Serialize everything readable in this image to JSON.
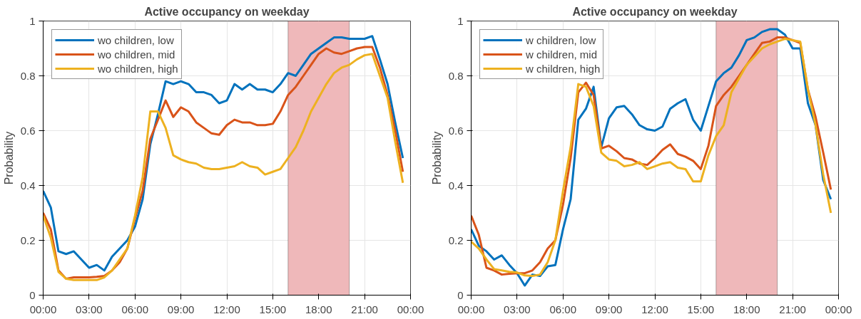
{
  "chart_data": [
    {
      "type": "line",
      "title": "Active occupancy on weekday",
      "ylabel": "Probability",
      "x": [
        0,
        0.5,
        1,
        1.5,
        2,
        2.5,
        3,
        3.5,
        4,
        4.5,
        5,
        5.5,
        6,
        6.5,
        7,
        7.5,
        8,
        8.5,
        9,
        9.5,
        10,
        10.5,
        11,
        11.5,
        12,
        12.5,
        13,
        13.5,
        14,
        14.5,
        15,
        15.5,
        16,
        16.5,
        17,
        17.5,
        18,
        18.5,
        19,
        19.5,
        20,
        20.5,
        21,
        21.5,
        22,
        22.5,
        23,
        23.5
      ],
      "series": [
        {
          "name": "wo children, low",
          "color": "#0072bd",
          "values": [
            0.38,
            0.32,
            0.16,
            0.15,
            0.16,
            0.13,
            0.1,
            0.11,
            0.09,
            0.14,
            0.17,
            0.2,
            0.25,
            0.35,
            0.55,
            0.66,
            0.78,
            0.77,
            0.78,
            0.77,
            0.74,
            0.74,
            0.73,
            0.7,
            0.71,
            0.77,
            0.75,
            0.77,
            0.75,
            0.75,
            0.74,
            0.77,
            0.81,
            0.8,
            0.84,
            0.88,
            0.9,
            0.92,
            0.94,
            0.94,
            0.935,
            0.935,
            0.935,
            0.945,
            0.86,
            0.77,
            0.63,
            0.5
          ]
        },
        {
          "name": "wo children, mid",
          "color": "#d95319",
          "values": [
            0.3,
            0.24,
            0.09,
            0.06,
            0.065,
            0.065,
            0.065,
            0.067,
            0.07,
            0.09,
            0.12,
            0.17,
            0.28,
            0.38,
            0.57,
            0.64,
            0.71,
            0.65,
            0.685,
            0.67,
            0.63,
            0.61,
            0.59,
            0.585,
            0.62,
            0.64,
            0.63,
            0.63,
            0.62,
            0.62,
            0.625,
            0.67,
            0.73,
            0.76,
            0.8,
            0.84,
            0.88,
            0.9,
            0.885,
            0.88,
            0.89,
            0.9,
            0.905,
            0.905,
            0.83,
            0.73,
            0.6,
            0.45
          ]
        },
        {
          "name": "wo children, high",
          "color": "#edb120",
          "values": [
            0.29,
            0.21,
            0.085,
            0.06,
            0.055,
            0.055,
            0.055,
            0.055,
            0.065,
            0.09,
            0.13,
            0.17,
            0.29,
            0.43,
            0.67,
            0.67,
            0.61,
            0.51,
            0.495,
            0.485,
            0.48,
            0.465,
            0.46,
            0.46,
            0.465,
            0.47,
            0.485,
            0.47,
            0.465,
            0.44,
            0.45,
            0.46,
            0.5,
            0.54,
            0.6,
            0.67,
            0.72,
            0.77,
            0.81,
            0.83,
            0.84,
            0.86,
            0.875,
            0.88,
            0.8,
            0.72,
            0.56,
            0.41
          ]
        }
      ],
      "xlim": [
        0,
        24
      ],
      "ylim": [
        0,
        1
      ],
      "xticks": [
        {
          "value": 0,
          "label": "00:00"
        },
        {
          "value": 3,
          "label": "03:00"
        },
        {
          "value": 6,
          "label": "06:00"
        },
        {
          "value": 9,
          "label": "09:00"
        },
        {
          "value": 12,
          "label": "12:00"
        },
        {
          "value": 15,
          "label": "15:00"
        },
        {
          "value": 18,
          "label": "18:00"
        },
        {
          "value": 21,
          "label": "21:00"
        },
        {
          "value": 24,
          "label": "00:00"
        }
      ],
      "yticks": [
        0,
        0.2,
        0.4,
        0.6,
        0.8,
        1
      ],
      "bands": [
        {
          "axis": "x",
          "from": 16,
          "to": 20,
          "color": "#efb8ba"
        }
      ],
      "grid": true,
      "legend": "top left"
    },
    {
      "type": "line",
      "title": "Active occupancy on weekday",
      "ylabel": "Probability",
      "x": [
        0,
        0.5,
        1,
        1.5,
        2,
        2.5,
        3,
        3.5,
        4,
        4.5,
        5,
        5.5,
        6,
        6.5,
        7,
        7.5,
        8,
        8.5,
        9,
        9.5,
        10,
        10.5,
        11,
        11.5,
        12,
        12.5,
        13,
        13.5,
        14,
        14.5,
        15,
        15.5,
        16,
        16.5,
        17,
        17.5,
        18,
        18.5,
        19,
        19.5,
        20,
        20.5,
        21,
        21.5,
        22,
        22.5,
        23,
        23.5
      ],
      "series": [
        {
          "name": "w children, low",
          "color": "#0072bd",
          "values": [
            0.24,
            0.18,
            0.16,
            0.13,
            0.145,
            0.11,
            0.08,
            0.035,
            0.075,
            0.07,
            0.105,
            0.11,
            0.24,
            0.35,
            0.64,
            0.68,
            0.76,
            0.54,
            0.645,
            0.685,
            0.69,
            0.66,
            0.62,
            0.605,
            0.6,
            0.615,
            0.68,
            0.7,
            0.715,
            0.64,
            0.6,
            0.69,
            0.78,
            0.81,
            0.83,
            0.875,
            0.93,
            0.94,
            0.96,
            0.97,
            0.97,
            0.95,
            0.9,
            0.9,
            0.7,
            0.62,
            0.42,
            0.35
          ]
        },
        {
          "name": "w children, mid",
          "color": "#d95319",
          "values": [
            0.29,
            0.22,
            0.1,
            0.09,
            0.075,
            0.078,
            0.08,
            0.08,
            0.09,
            0.12,
            0.17,
            0.2,
            0.33,
            0.5,
            0.74,
            0.775,
            0.73,
            0.535,
            0.545,
            0.525,
            0.5,
            0.495,
            0.48,
            0.475,
            0.5,
            0.53,
            0.55,
            0.515,
            0.505,
            0.49,
            0.46,
            0.545,
            0.69,
            0.73,
            0.76,
            0.8,
            0.84,
            0.88,
            0.92,
            0.925,
            0.94,
            0.94,
            0.93,
            0.92,
            0.75,
            0.65,
            0.52,
            0.385
          ]
        },
        {
          "name": "w children, high",
          "color": "#edb120",
          "values": [
            0.195,
            0.17,
            0.13,
            0.095,
            0.09,
            0.085,
            0.083,
            0.072,
            0.07,
            0.075,
            0.12,
            0.2,
            0.38,
            0.54,
            0.77,
            0.76,
            0.69,
            0.52,
            0.495,
            0.49,
            0.47,
            0.475,
            0.485,
            0.46,
            0.47,
            0.48,
            0.485,
            0.465,
            0.46,
            0.415,
            0.415,
            0.51,
            0.58,
            0.62,
            0.74,
            0.79,
            0.84,
            0.87,
            0.9,
            0.915,
            0.925,
            0.935,
            0.93,
            0.925,
            0.75,
            0.62,
            0.44,
            0.3
          ]
        }
      ],
      "xlim": [
        0,
        24
      ],
      "ylim": [
        0,
        1
      ],
      "xticks": [
        {
          "value": 0,
          "label": "00:00"
        },
        {
          "value": 3,
          "label": "03:00"
        },
        {
          "value": 6,
          "label": "06:00"
        },
        {
          "value": 9,
          "label": "09:00"
        },
        {
          "value": 12,
          "label": "12:00"
        },
        {
          "value": 15,
          "label": "15:00"
        },
        {
          "value": 18,
          "label": "18:00"
        },
        {
          "value": 21,
          "label": "21:00"
        },
        {
          "value": 24,
          "label": "00:00"
        }
      ],
      "yticks": [
        0,
        0.2,
        0.4,
        0.6,
        0.8,
        1
      ],
      "bands": [
        {
          "axis": "x",
          "from": 16,
          "to": 20,
          "color": "#efb8ba"
        }
      ],
      "grid": true,
      "legend": "top left"
    }
  ]
}
